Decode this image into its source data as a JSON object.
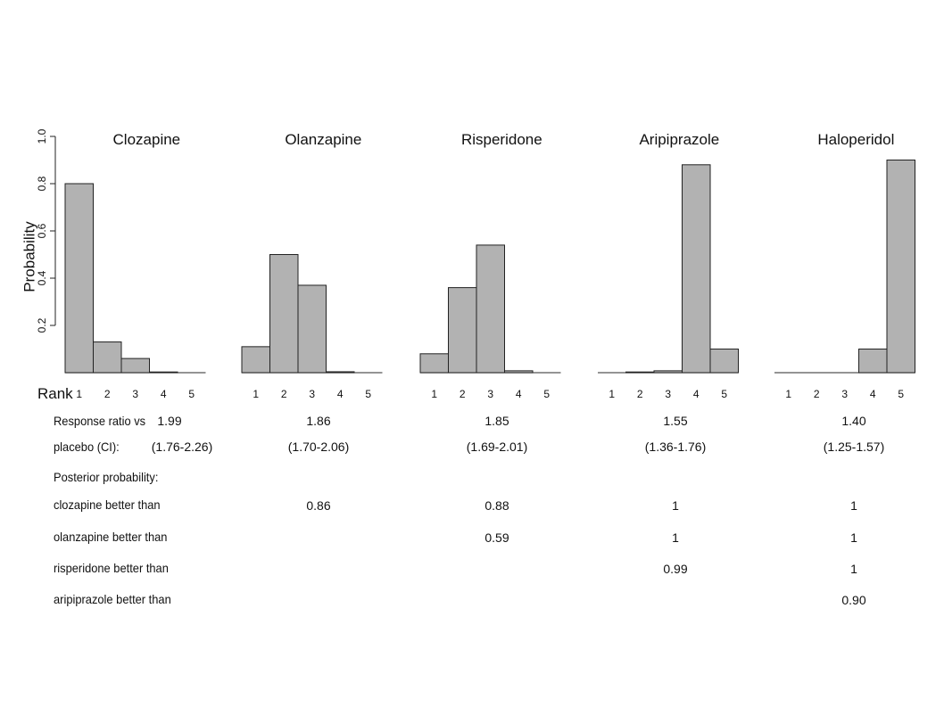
{
  "chart_data": {
    "type": "bar",
    "ylabel": "Probability",
    "xlabel": "Rank",
    "ylim": [
      0,
      1.0
    ],
    "yticks": [
      "0.2",
      "0.4",
      "0.6",
      "0.8",
      "1.0"
    ],
    "categories": [
      "1",
      "2",
      "3",
      "4",
      "5"
    ],
    "bar_color": "#b2b2b2",
    "panels": [
      {
        "name": "Clozapine",
        "values": [
          0.8,
          0.13,
          0.06,
          0.003,
          0.0
        ]
      },
      {
        "name": "Olanzapine",
        "values": [
          0.11,
          0.5,
          0.37,
          0.004,
          0.0
        ]
      },
      {
        "name": "Risperidone",
        "values": [
          0.08,
          0.36,
          0.54,
          0.008,
          0.0
        ]
      },
      {
        "name": "Aripiprazole",
        "values": [
          0.0,
          0.003,
          0.008,
          0.88,
          0.1
        ]
      },
      {
        "name": "Haloperidol",
        "values": [
          0.0,
          0.0,
          0.0,
          0.1,
          0.9
        ]
      }
    ]
  },
  "table": {
    "response_label_1": "Response ratio vs",
    "response_label_2": "placebo (CI):",
    "response_ratio": [
      "1.99",
      "1.86",
      "1.85",
      "1.55",
      "1.40"
    ],
    "ci": [
      "(1.76-2.26)",
      "(1.70-2.06)",
      "(1.69-2.01)",
      "(1.36-1.76)",
      "(1.25-1.57)"
    ],
    "posterior_heading": "Posterior probability:",
    "rows": [
      {
        "label": "clozapine better than",
        "values": [
          "",
          "0.86",
          "0.88",
          "1",
          "1"
        ]
      },
      {
        "label": "olanzapine better than",
        "values": [
          "",
          "",
          "0.59",
          "1",
          "1"
        ]
      },
      {
        "label": "risperidone better than",
        "values": [
          "",
          "",
          "",
          "0.99",
          "1"
        ]
      },
      {
        "label": "aripiprazole better than",
        "values": [
          "",
          "",
          "",
          "",
          "0.90"
        ]
      }
    ]
  }
}
